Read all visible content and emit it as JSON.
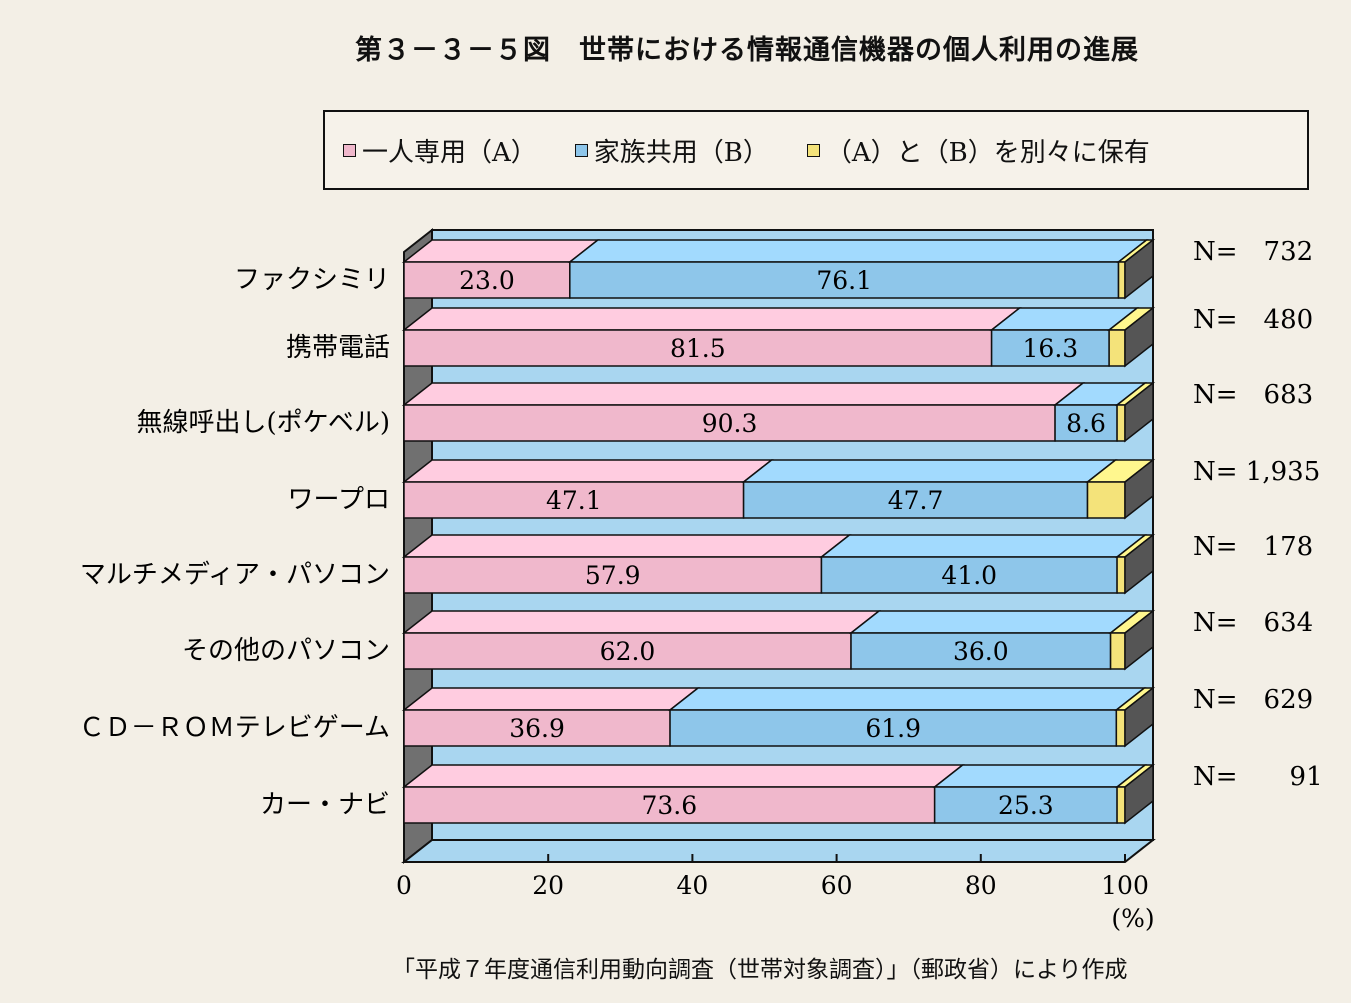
{
  "title": "第３－３－５図　世帯における情報通信機器の個人利用の進展",
  "source": "「平成７年度通信利用動向調査（世帯対象調査）」（郵政省）により作成",
  "colors": {
    "A": "#f0b8cc",
    "B": "#8ec6ea",
    "C": "#f4e37a",
    "wall": "#a9d6f0",
    "side": "#555555"
  },
  "legend": [
    {
      "label": "一人専用（A）",
      "color": "#f0b8cc"
    },
    {
      "label": "家族共用（B）",
      "color": "#8ec6ea"
    },
    {
      "label": "（A）と（B）を別々に保有",
      "color": "#f4e37a"
    }
  ],
  "chart_data": {
    "type": "bar",
    "orientation": "horizontal",
    "stacked": true,
    "categories": [
      "ファクシミリ",
      "携帯電話",
      "無線呼出し(ポケベル)",
      "ワープロ",
      "マルチメディア・パソコン",
      "その他のパソコン",
      "ＣＤ－ＲＯＭテレビゲーム",
      "カー・ナビ"
    ],
    "series": [
      {
        "name": "一人専用（A）",
        "values": [
          23.0,
          81.5,
          90.3,
          47.1,
          57.9,
          62.0,
          36.9,
          73.6
        ]
      },
      {
        "name": "家族共用（B）",
        "values": [
          76.1,
          16.3,
          8.6,
          47.7,
          41.0,
          36.0,
          61.9,
          25.3
        ]
      },
      {
        "name": "（A）と（B）を別々に保有",
        "values": [
          0.9,
          2.2,
          1.1,
          5.2,
          1.1,
          2.0,
          1.2,
          1.1
        ]
      }
    ],
    "value_labels": [
      [
        "23.0",
        "76.1"
      ],
      [
        "81.5",
        "16.3"
      ],
      [
        "90.3",
        "8.6"
      ],
      [
        "47.1",
        "47.7"
      ],
      [
        "57.9",
        "41.0"
      ],
      [
        "62.0",
        "36.0"
      ],
      [
        "36.9",
        "61.9"
      ],
      [
        "73.6",
        "25.3"
      ]
    ],
    "n_labels": [
      "N=　732",
      "N=　480",
      "N=　683",
      "N= 1,935",
      "N=　178",
      "N=　634",
      "N=　629",
      "N=　　91"
    ],
    "xlim": [
      0,
      100
    ],
    "xticks": [
      "0",
      "20",
      "40",
      "60",
      "80",
      "100"
    ],
    "xlabel": "(%)",
    "grid": false
  }
}
